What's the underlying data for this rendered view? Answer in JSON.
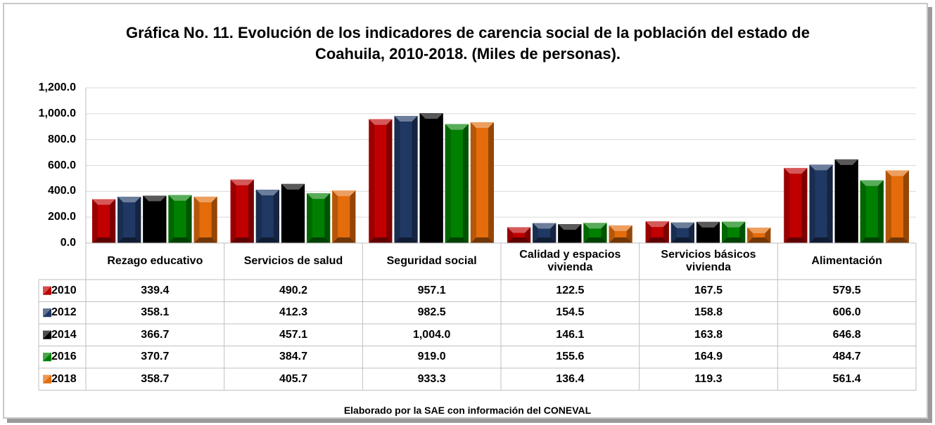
{
  "chart_data": {
    "type": "bar",
    "title": "Gráfica No. 11. Evolución de los indicadores de carencia social de la población del estado de Coahuila, 2010-2018. (Miles de personas).",
    "categories": [
      "Rezago educativo",
      "Servicios de salud",
      "Seguridad social",
      "Calidad y espacios vivienda",
      "Servicios básicos vivienda",
      "Alimentación"
    ],
    "series": [
      {
        "name": "2010",
        "color": "#c00000",
        "values": [
          339.4,
          490.2,
          957.1,
          122.5,
          167.5,
          579.5
        ],
        "value_labels": [
          "339.4",
          "490.2",
          "957.1",
          "122.5",
          "167.5",
          "579.5"
        ]
      },
      {
        "name": "2012",
        "color": "#1f3864",
        "values": [
          358.1,
          412.3,
          982.5,
          154.5,
          158.8,
          606.0
        ],
        "value_labels": [
          "358.1",
          "412.3",
          "982.5",
          "154.5",
          "158.8",
          "606.0"
        ]
      },
      {
        "name": "2014",
        "color": "#000000",
        "values": [
          366.7,
          457.1,
          1004.0,
          146.1,
          163.8,
          646.8
        ],
        "value_labels": [
          "366.7",
          "457.1",
          "1,004.0",
          "146.1",
          "163.8",
          "646.8"
        ]
      },
      {
        "name": "2016",
        "color": "#008000",
        "values": [
          370.7,
          384.7,
          919.0,
          155.6,
          164.9,
          484.7
        ],
        "value_labels": [
          "370.7",
          "384.7",
          "919.0",
          "155.6",
          "164.9",
          "484.7"
        ]
      },
      {
        "name": "2018",
        "color": "#e46c0a",
        "values": [
          358.7,
          405.7,
          933.3,
          136.4,
          119.3,
          561.4
        ],
        "value_labels": [
          "358.7",
          "405.7",
          "933.3",
          "136.4",
          "119.3",
          "561.4"
        ]
      }
    ],
    "ylim": [
      0,
      1200
    ],
    "yticks": [
      {
        "value": 0,
        "label": "0.0"
      },
      {
        "value": 200,
        "label": "200.0"
      },
      {
        "value": 400,
        "label": "400.0"
      },
      {
        "value": 600,
        "label": "600.0"
      },
      {
        "value": 800,
        "label": "800.0"
      },
      {
        "value": 1000,
        "label": "1,000.0"
      },
      {
        "value": 1200,
        "label": "1,200.0"
      }
    ],
    "grid": true,
    "data_table": true,
    "source": "Elaborado por la SAE con información del CONEVAL"
  }
}
